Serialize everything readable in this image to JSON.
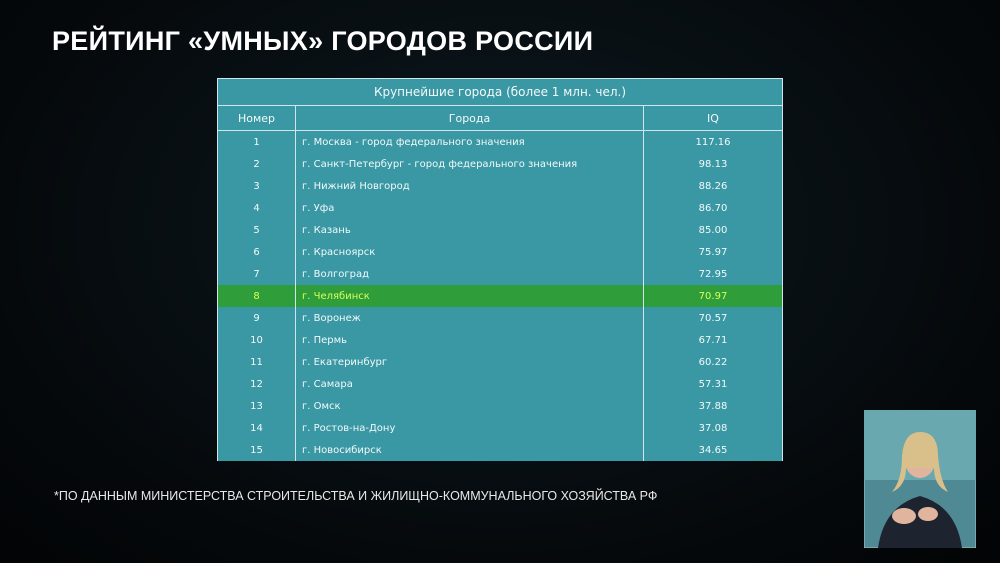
{
  "header": {
    "title": "РЕЙТИНГ «УМНЫХ» ГОРОДОВ РОССИИ"
  },
  "table": {
    "caption": "Крупнейшие города (более 1 млн. чел.)",
    "columns": [
      "Номер",
      "Города",
      "IQ"
    ],
    "rows": [
      [
        "1",
        "г. Москва - город федерального значения",
        "117.16"
      ],
      [
        "2",
        "г. Санкт-Петербург - город федерального значения",
        "98.13"
      ],
      [
        "3",
        "г. Нижний Новгород",
        "88.26"
      ],
      [
        "4",
        "г. Уфа",
        "86.70"
      ],
      [
        "5",
        "г. Казань",
        "85.00"
      ],
      [
        "6",
        "г. Красноярск",
        "75.97"
      ],
      [
        "7",
        "г. Волгоград",
        "72.95"
      ],
      [
        "8",
        "г. Челябинск",
        "70.97"
      ],
      [
        "9",
        "г. Воронеж",
        "70.57"
      ],
      [
        "10",
        "г. Пермь",
        "67.71"
      ],
      [
        "11",
        "г. Екатеринбург",
        "60.22"
      ],
      [
        "12",
        "г. Самара",
        "57.31"
      ],
      [
        "13",
        "г. Омск",
        "37.88"
      ],
      [
        "14",
        "г. Ростов-на-Дону",
        "37.08"
      ],
      [
        "15",
        "г. Новосибирск",
        "34.65"
      ]
    ]
  },
  "footnote": "*ПО ДАННЫМ МИНИСТЕРСТВА СТРОИТЕЛЬСТВА И ЖИЛИЩНО-КОММУНАЛЬНОГО ХОЗЯЙСТВА РФ"
}
